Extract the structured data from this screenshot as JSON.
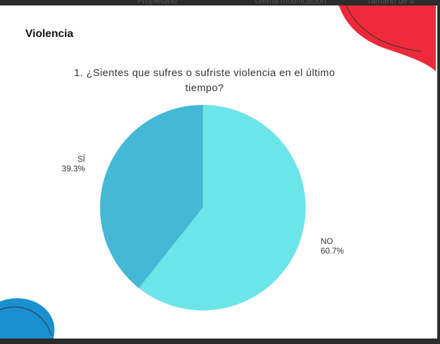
{
  "toolbar": {
    "columns": [
      "Propietario",
      "Última modificación",
      "Tamaño de a"
    ]
  },
  "slide": {
    "heading": "Violencia"
  },
  "chart_data": {
    "type": "pie",
    "title": "1.  ¿Sientes que sufres o sufriste violencia en el último tiempo?",
    "categories": [
      "NO",
      "SÍ"
    ],
    "values": [
      60.7,
      39.3
    ],
    "value_labels": [
      "60.7%",
      "39.3%"
    ],
    "colors": [
      "#6ce5e8",
      "#45b8d6"
    ]
  }
}
